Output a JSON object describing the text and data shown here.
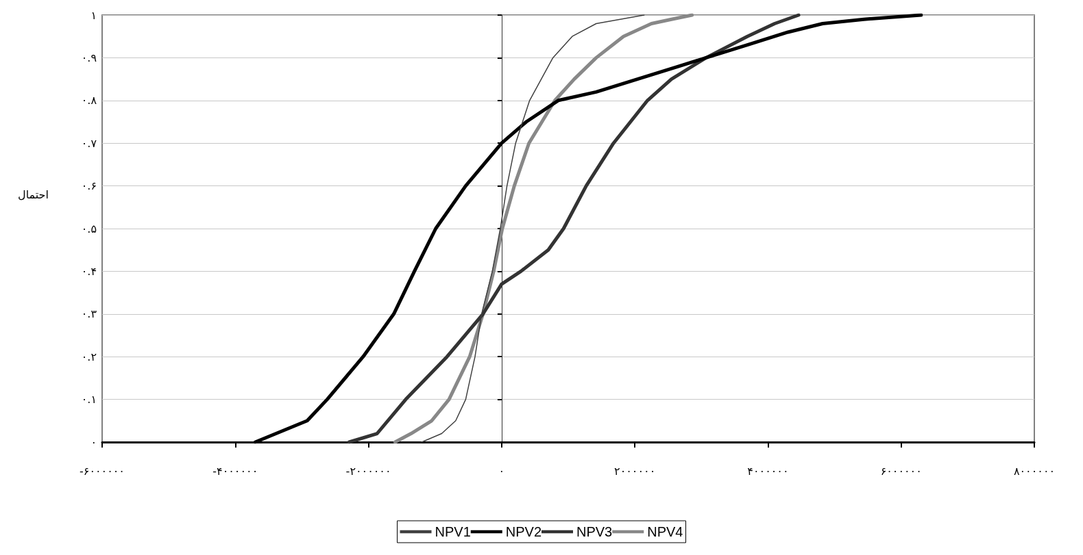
{
  "chart_data": {
    "type": "line",
    "ylabel": "احتمال",
    "xlim": [
      -6000000,
      8000000
    ],
    "xticks": [
      {
        "value": -6000000,
        "label": "-۶۰۰۰۰۰۰"
      },
      {
        "value": -4000000,
        "label": "-۴۰۰۰۰۰۰"
      },
      {
        "value": -2000000,
        "label": "-۲۰۰۰۰۰۰"
      },
      {
        "value": 0,
        "label": "۰"
      },
      {
        "value": 2000000,
        "label": "۲۰۰۰۰۰۰"
      },
      {
        "value": 4000000,
        "label": "۴۰۰۰۰۰۰"
      },
      {
        "value": 6000000,
        "label": "۶۰۰۰۰۰۰"
      },
      {
        "value": 8000000,
        "label": "۸۰۰۰۰۰۰"
      }
    ],
    "ylim": [
      0,
      1
    ],
    "yticks": [
      {
        "value": 0,
        "label": "۰"
      },
      {
        "value": 0.1,
        "label": "۰.۱"
      },
      {
        "value": 0.2,
        "label": "۰.۲"
      },
      {
        "value": 0.3,
        "label": "۰.۳"
      },
      {
        "value": 0.4,
        "label": "۰.۴"
      },
      {
        "value": 0.5,
        "label": "۰.۵"
      },
      {
        "value": 0.6,
        "label": "۰.۶"
      },
      {
        "value": 0.7,
        "label": "۰.۷"
      },
      {
        "value": 0.8,
        "label": "۰.۸"
      },
      {
        "value": 0.9,
        "label": "۰.۹"
      },
      {
        "value": 1,
        "label": "۱"
      }
    ],
    "grid": "y",
    "legend": "bottom",
    "marker": "none",
    "line_style": "solid",
    "series": [
      {
        "name": "NPV1",
        "color": "#404040",
        "x": [
          -1200000,
          -900000,
          -690000,
          -540000,
          -400000,
          -300000,
          -140000,
          -20000,
          80000,
          210000,
          420000,
          770000,
          1060000,
          1420000,
          2140000
        ],
        "values": [
          0,
          0.02,
          0.05,
          0.1,
          0.2,
          0.3,
          0.4,
          0.5,
          0.6,
          0.7,
          0.8,
          0.9,
          0.95,
          0.98,
          1
        ]
      },
      {
        "name": "NPV2",
        "color": "#000000",
        "x": [
          -3700000,
          -2920000,
          -2620000,
          -2080000,
          -1620000,
          -1310000,
          -990000,
          -540000,
          0,
          370000,
          850000,
          1420000,
          2040000,
          2660000,
          3070000,
          3690000,
          4300000,
          4820000,
          5440000,
          6300000
        ],
        "values": [
          0,
          0.05,
          0.1,
          0.2,
          0.3,
          0.4,
          0.5,
          0.6,
          0.7,
          0.75,
          0.8,
          0.82,
          0.85,
          0.88,
          0.9,
          0.93,
          0.96,
          0.98,
          0.99,
          1
        ]
      },
      {
        "name": "NPV3",
        "color": "#333333",
        "x": [
          -2290000,
          -1870000,
          -1440000,
          -820000,
          -280000,
          0,
          290000,
          700000,
          930000,
          1270000,
          1680000,
          2190000,
          2550000,
          3070000,
          3690000,
          4100000,
          4460000
        ],
        "values": [
          0,
          0.02,
          0.1,
          0.2,
          0.3,
          0.37,
          0.4,
          0.45,
          0.5,
          0.6,
          0.7,
          0.8,
          0.85,
          0.9,
          0.95,
          0.98,
          1
        ]
      },
      {
        "name": "NPV4",
        "color": "#888888",
        "x": [
          -1600000,
          -1360000,
          -1050000,
          -790000,
          -480000,
          -280000,
          -120000,
          10000,
          190000,
          410000,
          800000,
          1090000,
          1420000,
          1830000,
          2250000,
          2550000,
          2860000
        ],
        "values": [
          0,
          0.02,
          0.05,
          0.1,
          0.2,
          0.3,
          0.4,
          0.5,
          0.6,
          0.7,
          0.8,
          0.85,
          0.9,
          0.95,
          0.98,
          0.99,
          1
        ]
      }
    ]
  }
}
